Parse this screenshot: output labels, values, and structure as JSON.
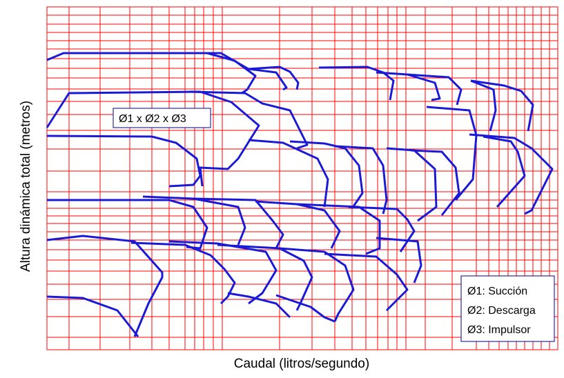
{
  "chart_data": {
    "type": "line",
    "xlabel": "Caudal (litros/segundo)",
    "ylabel": "Altura dinámica total (metros)",
    "x_scale": "log",
    "y_scale": "log",
    "grid": true,
    "grid_color": "#ff0000",
    "curve_color": "#1a1ad6",
    "diameter_label": "Ø1 x Ø2 x Ø3",
    "legend": [
      "Ø1: Succión",
      "Ø2: Descarga",
      "Ø3: Impulsor"
    ],
    "legend_placement": "bottom-right",
    "regions": [
      {
        "top": [
          [
            0.06,
            0.82
          ],
          [
            0.26,
            0.82
          ],
          [
            0.28,
            0.72
          ],
          [
            0.36,
            0.72
          ],
          [
            0.34,
            0.83
          ],
          [
            0.35,
            0.92
          ],
          [
            0.12,
            0.92
          ]
        ]
      },
      {
        "top": [
          [
            0.12,
            0.32
          ],
          [
            0.28,
            0.32
          ],
          [
            0.33,
            0.22
          ],
          [
            0.4,
            0.22
          ],
          [
            0.42,
            0.07
          ],
          [
            0.46,
            0.05
          ],
          [
            0.41,
            0.32
          ]
        ]
      },
      {
        "top": [
          [
            0.05,
            0.52
          ],
          [
            0.3,
            0.52
          ],
          [
            0.34,
            0.38
          ],
          [
            0.42,
            0.38
          ],
          [
            0.38,
            0.62
          ],
          [
            0.3,
            0.7
          ],
          [
            0.22,
            0.7
          ]
        ]
      }
    ]
  }
}
